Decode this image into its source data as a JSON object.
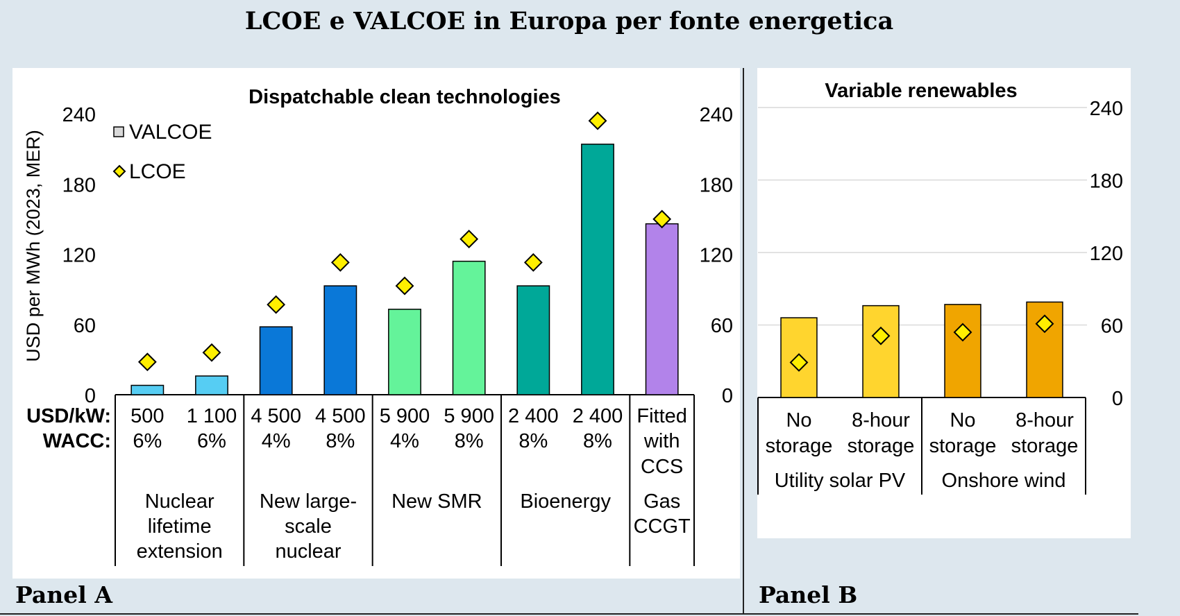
{
  "figure": {
    "title": "LCOE e VALCOE in Europa per fonte energetica",
    "panel_a_label": "Panel A",
    "panel_b_label": "Panel B"
  },
  "colors": {
    "nuclear_ext": "#56cdf3",
    "large_nuclear": "#0a78d8",
    "smr": "#64f39a",
    "bioenergy": "#00a898",
    "gas": "#b283ea",
    "solar": "#ffd52e",
    "wind": "#f0a500",
    "lcoe_marker": "#ffef00",
    "gridline": "#d9d9d9"
  },
  "chart_data": [
    {
      "type": "bar",
      "title": "Dispatchable clean technologies",
      "ylabel": "USD per MWh (2023, MER)",
      "ylim": [
        0,
        240
      ],
      "yticks": [
        "0",
        "60",
        "120",
        "180",
        "240"
      ],
      "legend": [
        "VALCOE",
        "LCOE"
      ],
      "legend_position": "top-left",
      "row_headers": [
        "USD/kW:",
        "WACC:"
      ],
      "categories": [
        {
          "cost": "500",
          "wacc": "6%"
        },
        {
          "cost": "1 100",
          "wacc": "6%"
        },
        {
          "cost": "4 500",
          "wacc": "4%"
        },
        {
          "cost": "4 500",
          "wacc": "8%"
        },
        {
          "cost": "5 900",
          "wacc": "4%"
        },
        {
          "cost": "5 900",
          "wacc": "8%"
        },
        {
          "cost": "2 400",
          "wacc": "8%"
        },
        {
          "cost": "2 400",
          "wacc": "8%"
        },
        {
          "cost": "Fitted",
          "wacc": "with",
          "extra": "CCS"
        }
      ],
      "groups": [
        {
          "label_lines": [
            "Nuclear",
            "lifetime",
            "extension"
          ],
          "span": 2
        },
        {
          "label_lines": [
            "New large-",
            "scale",
            "nuclear"
          ],
          "span": 2
        },
        {
          "label_lines": [
            "New SMR"
          ],
          "span": 2
        },
        {
          "label_lines": [
            "Bioenergy"
          ],
          "span": 2
        },
        {
          "label_lines": [
            "Gas",
            "CCGT"
          ],
          "span": 1
        }
      ],
      "series": [
        {
          "name": "VALCOE",
          "values": [
            8,
            16,
            58,
            93,
            73,
            114,
            93,
            214,
            146
          ]
        },
        {
          "name": "LCOE",
          "values": [
            28,
            36,
            77,
            113,
            93,
            133,
            113,
            234,
            150
          ]
        }
      ],
      "bar_color_keys": [
        "nuclear_ext",
        "nuclear_ext",
        "large_nuclear",
        "large_nuclear",
        "smr",
        "smr",
        "bioenergy",
        "bioenergy",
        "gas"
      ]
    },
    {
      "type": "bar",
      "title": "Variable renewables",
      "ylim": [
        0,
        240
      ],
      "yticks": [
        "0",
        "60",
        "120",
        "180",
        "240"
      ],
      "categories": [
        {
          "line1": "No",
          "line2": "storage"
        },
        {
          "line1": "8-hour",
          "line2": "storage"
        },
        {
          "line1": "No",
          "line2": "storage"
        },
        {
          "line1": "8-hour",
          "line2": "storage"
        }
      ],
      "groups": [
        {
          "label": "Utility solar PV",
          "span": 2
        },
        {
          "label": "Onshore wind",
          "span": 2
        }
      ],
      "series": [
        {
          "name": "VALCOE",
          "values": [
            66,
            76,
            77,
            79
          ]
        },
        {
          "name": "LCOE",
          "values": [
            29,
            51,
            54,
            61
          ]
        }
      ],
      "bar_color_keys": [
        "solar",
        "solar",
        "wind",
        "wind"
      ]
    }
  ]
}
